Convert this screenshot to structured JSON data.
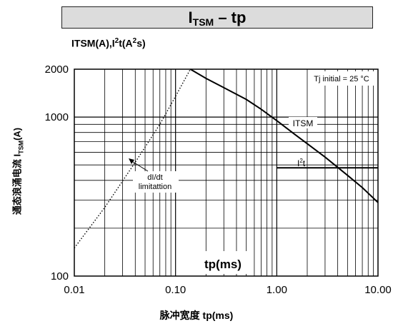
{
  "chart_data": {
    "type": "line",
    "title": "I_TSM – tp",
    "title_main": "I",
    "title_sub": "TSM",
    "title_rest": " – tp",
    "ylabel_top": {
      "a": "ITSM(A),I",
      "b": "2",
      "c": "t(A",
      "d": "2",
      "e": "s)"
    },
    "ylabel_side": {
      "main": "通态浪涌电流 I",
      "sub": "TSM",
      "end": "(A)"
    },
    "xlabel": "脉冲宽度 tp(ms)",
    "inner_xlabel": "tp(ms)",
    "xscale": "log",
    "yscale": "log",
    "xlim": [
      0.01,
      10
    ],
    "ylim": [
      100,
      2000
    ],
    "x_ticks": [
      "0.01",
      "0.10",
      "1.00",
      "10.00"
    ],
    "y_ticks": [
      "100",
      "1000",
      "2000"
    ],
    "grid": true,
    "condition_label": "Tj initial = 25 °C",
    "series": [
      {
        "name": "ITSM",
        "style": "solid",
        "x": [
          0.14,
          0.2,
          0.3,
          0.5,
          0.7,
          1.0,
          1.5,
          2.0,
          3.0,
          5.0,
          7.0,
          10.0
        ],
        "y": [
          2000,
          1750,
          1530,
          1290,
          1120,
          950,
          780,
          680,
          560,
          430,
          360,
          290
        ]
      },
      {
        "name": "I2t",
        "style": "solid",
        "x": [
          1.0,
          10.0
        ],
        "y": [
          480,
          480
        ]
      },
      {
        "name": "dI/dt limitation",
        "style": "dotted",
        "x": [
          0.01,
          0.02,
          0.04,
          0.07,
          0.1,
          0.14
        ],
        "y": [
          150,
          270,
          520,
          900,
          1350,
          2000
        ]
      }
    ],
    "annotations": {
      "itsm": "ITSM",
      "i2t_main": "I",
      "i2t_sup": "2",
      "i2t_end": "t",
      "didt_line1": "dI/dt",
      "didt_line2": "limitattion"
    }
  }
}
